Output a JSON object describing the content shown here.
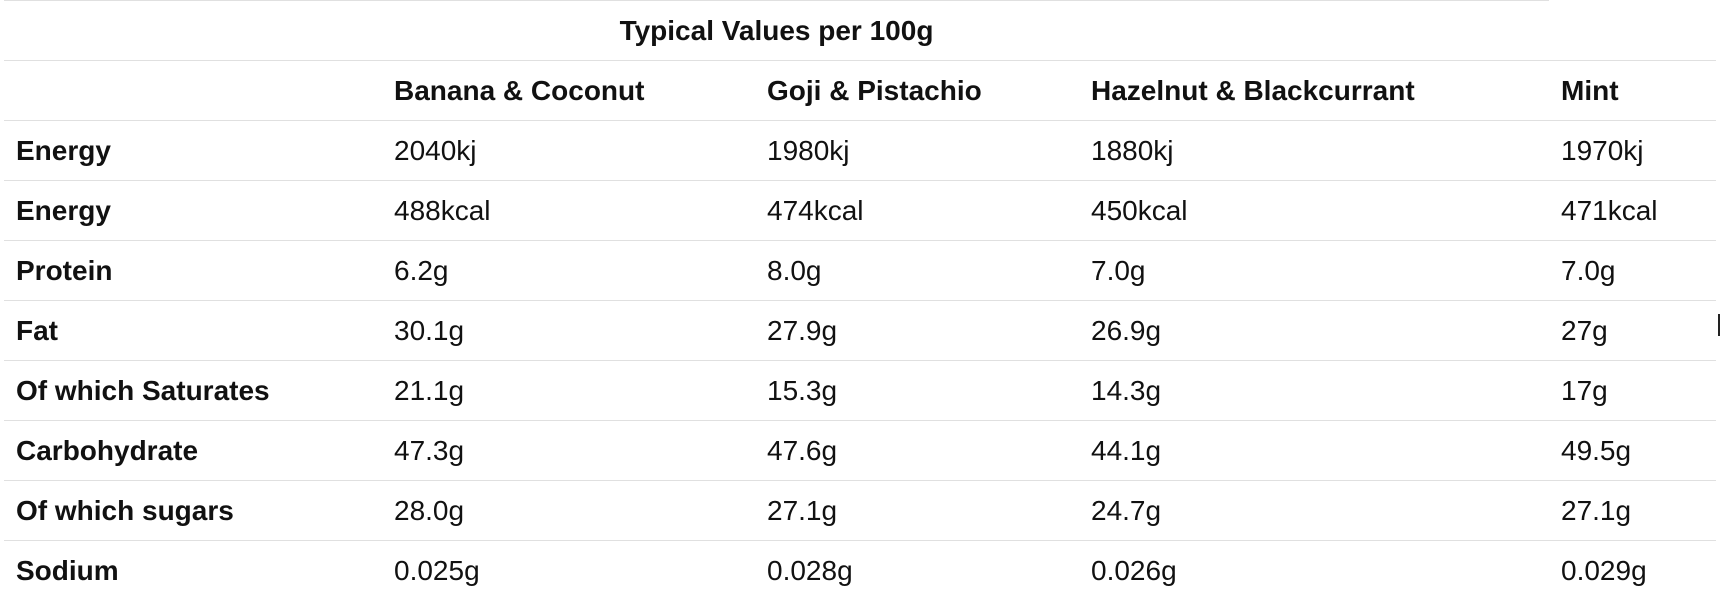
{
  "table": {
    "title": "Typical Values per 100g",
    "corner_label": "",
    "columns": [
      "Banana & Coconut",
      "Goji & Pistachio",
      "Hazelnut & Blackcurrant",
      "Mint"
    ],
    "rows": [
      {
        "label": "Energy",
        "values": [
          "2040kj",
          "1980kj",
          "1880kj",
          "1970kj"
        ]
      },
      {
        "label": "Energy",
        "values": [
          "488kcal",
          "474kcal",
          "450kcal",
          "471kcal"
        ]
      },
      {
        "label": "Protein",
        "values": [
          "6.2g",
          "8.0g",
          "7.0g",
          "7.0g"
        ]
      },
      {
        "label": "Fat",
        "values": [
          "30.1g",
          "27.9g",
          "26.9g",
          "27g"
        ]
      },
      {
        "label": "Of which Saturates",
        "values": [
          "21.1g",
          "15.3g",
          "14.3g",
          "17g"
        ]
      },
      {
        "label": "Carbohydrate",
        "values": [
          "47.3g",
          "47.6g",
          "44.1g",
          "49.5g"
        ]
      },
      {
        "label": "Of which sugars",
        "values": [
          "28.0g",
          "27.1g",
          "24.7g",
          "27.1g"
        ]
      },
      {
        "label": "Sodium",
        "values": [
          "0.025g",
          "0.028g",
          "0.026g",
          "0.029g"
        ]
      }
    ]
  },
  "colors": {
    "text": "#111111",
    "divider": "#e0e0e0",
    "background": "#ffffff"
  }
}
